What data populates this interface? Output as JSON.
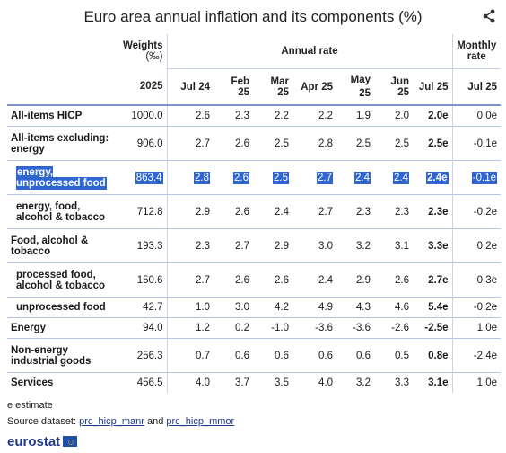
{
  "title": "Euro area annual inflation and its components (%)",
  "share_icon": "share-icon",
  "header": {
    "weights": "Weights",
    "weights_unit": "(‰)",
    "annual_rate": "Annual rate",
    "monthly_rate_1": "Monthly",
    "monthly_rate_2": "rate",
    "cols": [
      "2025",
      "Jul 24",
      "Feb 25",
      "Mar 25",
      "Apr 25",
      "May 25",
      "Jun 25",
      "Jul 25",
      "Jul 25"
    ]
  },
  "rows": [
    {
      "label": "All-items HICP",
      "values": [
        "1000.0",
        "2.6",
        "2.3",
        "2.2",
        "2.2",
        "1.9",
        "2.0",
        "2.0e",
        "0.0e"
      ]
    },
    {
      "label": "All-items excluding: energy",
      "values": [
        "906.0",
        "2.7",
        "2.6",
        "2.5",
        "2.8",
        "2.5",
        "2.5",
        "2.5e",
        "-0.1e"
      ]
    },
    {
      "label": "energy, unprocessed food",
      "values": [
        "863.4",
        "2.8",
        "2.6",
        "2.5",
        "2.7",
        "2.4",
        "2.4",
        "2.4e",
        "-0.1e"
      ]
    },
    {
      "label": "energy, food, alcohol & tobacco",
      "values": [
        "712.8",
        "2.9",
        "2.6",
        "2.4",
        "2.7",
        "2.3",
        "2.3",
        "2.3e",
        "-0.2e"
      ]
    },
    {
      "label": "Food, alcohol & tobacco",
      "values": [
        "193.3",
        "2.3",
        "2.7",
        "2.9",
        "3.0",
        "3.2",
        "3.1",
        "3.3e",
        "0.2e"
      ]
    },
    {
      "label": "processed food, alcohol & tobacco",
      "values": [
        "150.6",
        "2.7",
        "2.6",
        "2.6",
        "2.4",
        "2.9",
        "2.6",
        "2.7e",
        "0.3e"
      ]
    },
    {
      "label": "unprocessed food",
      "values": [
        "42.7",
        "1.0",
        "3.0",
        "4.2",
        "4.9",
        "4.3",
        "4.6",
        "5.4e",
        "-0.2e"
      ]
    },
    {
      "label": "Energy",
      "values": [
        "94.0",
        "1.2",
        "0.2",
        "-1.0",
        "-3.6",
        "-3.6",
        "-2.6",
        "-2.5e",
        "1.0e"
      ]
    },
    {
      "label": "Non-energy industrial goods",
      "values": [
        "256.3",
        "0.7",
        "0.6",
        "0.6",
        "0.6",
        "0.6",
        "0.5",
        "0.8e",
        "-2.4e"
      ]
    },
    {
      "label": "Services",
      "values": [
        "456.5",
        "4.0",
        "3.7",
        "3.5",
        "4.0",
        "3.2",
        "3.3",
        "3.1e",
        "1.0e"
      ]
    }
  ],
  "footnote": "e estimate",
  "source_prefix": "Source dataset:",
  "source_link_1": "prc_hicp_manr",
  "source_and": "and",
  "source_link_2": "prc_hicp_mmor",
  "logo_text": "eurostat",
  "logo_icon": "eu-flag-icon"
}
